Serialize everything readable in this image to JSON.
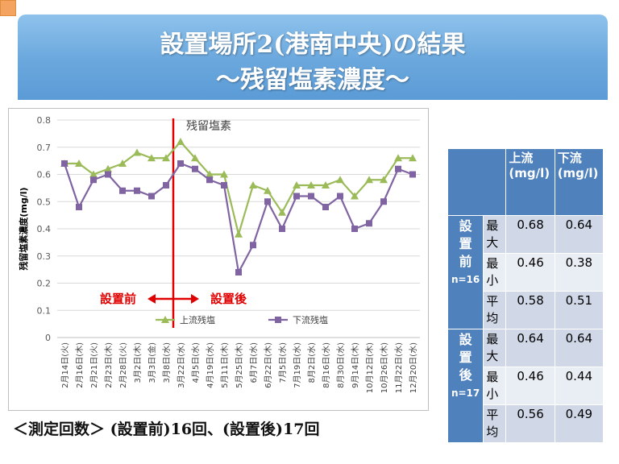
{
  "title": {
    "line1": "設置場所2(港南中央)の結果",
    "line2": "～残留塩素濃度～"
  },
  "chart_data": {
    "type": "line",
    "title": "残留塩素",
    "ylabel": "残留塩素濃度(mg/l)",
    "xlabel": "",
    "ylim": [
      0,
      0.8
    ],
    "yticks": [
      "0",
      "0.1",
      "0.2",
      "0.3",
      "0.4",
      "0.5",
      "0.6",
      "0.7",
      "0.8"
    ],
    "grid": true,
    "legend_position": "bottom",
    "categories": [
      "2月14日(火)",
      "2月16日(木)",
      "2月21日(火)",
      "2月23日(木)",
      "2月28日(火)",
      "3月2日(木)",
      "3月3日(金)",
      "3月8日(水)",
      "3月22日(水)",
      "4月5日(水)",
      "4月19日(水)",
      "5月11日(木)",
      "5月25日(木)",
      "6月7日(水)",
      "6月22日(木)",
      "7月5日(水)",
      "7月19日(水)",
      "8月2日(水)",
      "8月16日(水)",
      "8月30日(水)",
      "9月14日(木)",
      "10月12日(木)",
      "10月26日(木)",
      "11月22日(水)",
      "12月20日(水)"
    ],
    "series": [
      {
        "name": "上流残塩",
        "color": "#9bbb59",
        "marker": "triangle",
        "values": [
          0.64,
          0.64,
          0.6,
          0.62,
          0.64,
          0.68,
          0.66,
          0.66,
          0.72,
          0.66,
          0.6,
          0.6,
          0.38,
          0.56,
          0.54,
          0.46,
          0.56,
          0.56,
          0.56,
          0.58,
          0.52,
          0.58,
          0.58,
          0.66,
          0.66
        ]
      },
      {
        "name": "下流残塩",
        "color": "#8064a2",
        "marker": "square",
        "values": [
          0.64,
          0.48,
          0.58,
          0.6,
          0.54,
          0.54,
          0.52,
          0.56,
          0.64,
          0.62,
          0.58,
          0.56,
          0.24,
          0.34,
          0.5,
          0.4,
          0.52,
          0.52,
          0.48,
          0.52,
          0.4,
          0.42,
          0.5,
          0.62,
          0.6
        ]
      }
    ],
    "annotations": {
      "before": "設置前",
      "after": "設置後",
      "divider_color": "#e00000",
      "divider_after_index": 7
    }
  },
  "table": {
    "headers": [
      "上流(mg/l)",
      "下流(mg/l)"
    ],
    "groups": [
      {
        "label": "設置前",
        "count": "n=16",
        "rows": [
          {
            "label": "最大",
            "upstream": "0.68",
            "downstream": "0.64"
          },
          {
            "label": "最小",
            "upstream": "0.46",
            "downstream": "0.38"
          },
          {
            "label": "平均",
            "upstream": "0.58",
            "downstream": "0.51"
          }
        ]
      },
      {
        "label": "設置後",
        "count": "n=17",
        "rows": [
          {
            "label": "最大",
            "upstream": "0.64",
            "downstream": "0.64"
          },
          {
            "label": "最小",
            "upstream": "0.46",
            "downstream": "0.44"
          },
          {
            "label": "平均",
            "upstream": "0.56",
            "downstream": "0.49"
          }
        ]
      }
    ]
  },
  "footer": "＜測定回数＞ (設置前)16回、(設置後)17回"
}
